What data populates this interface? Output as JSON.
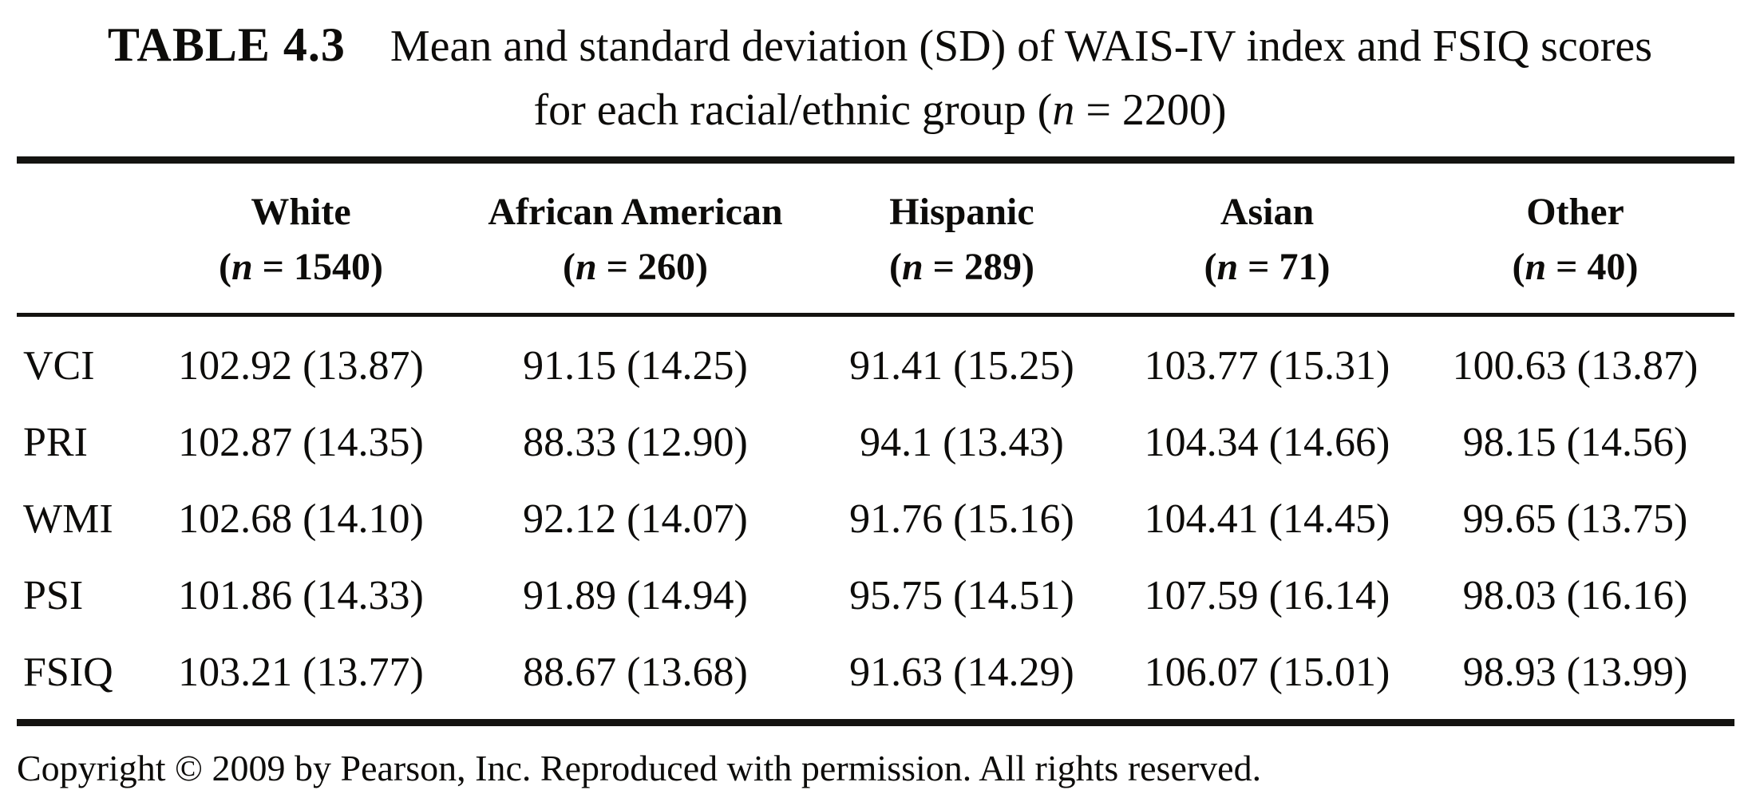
{
  "page": {
    "background": "#ffffff",
    "text_color": "#0d0c0a",
    "rule_color": "#141310"
  },
  "title": {
    "label": "TABLE 4.3",
    "line1": "Mean and standard deviation (SD) of WAIS-IV index and FSIQ scores",
    "line2": "for each racial/ethnic group (*n* = 2200)"
  },
  "table": {
    "row_header_column": "",
    "columns": [
      {
        "name": "White",
        "n": "(*n* = 1540)"
      },
      {
        "name": "African American",
        "n": "(*n* = 260)"
      },
      {
        "name": "Hispanic",
        "n": "(*n* = 289)"
      },
      {
        "name": "Asian",
        "n": "(*n* = 71)"
      },
      {
        "name": "Other",
        "n": "(*n* = 40)"
      }
    ],
    "rows": [
      {
        "label": "VCI",
        "values": [
          "102.92 (13.87)",
          "91.15 (14.25)",
          "91.41 (15.25)",
          "103.77 (15.31)",
          "100.63 (13.87)"
        ]
      },
      {
        "label": "PRI",
        "values": [
          "102.87 (14.35)",
          "88.33 (12.90)",
          "94.1 (13.43)",
          "104.34 (14.66)",
          "98.15 (14.56)"
        ]
      },
      {
        "label": "WMI",
        "values": [
          "102.68 (14.10)",
          "92.12 (14.07)",
          "91.76 (15.16)",
          "104.41 (14.45)",
          "99.65 (13.75)"
        ]
      },
      {
        "label": "PSI",
        "values": [
          "101.86 (14.33)",
          "91.89 (14.94)",
          "95.75 (14.51)",
          "107.59 (16.14)",
          "98.03 (16.16)"
        ]
      },
      {
        "label": "FSIQ",
        "values": [
          "103.21 (13.77)",
          "88.67 (13.68)",
          "91.63 (14.29)",
          "106.07 (15.01)",
          "98.93 (13.99)"
        ]
      }
    ]
  },
  "footer": {
    "text": "Copyright © 2009 by Pearson, Inc. Reproduced with permission. All rights reserved."
  }
}
